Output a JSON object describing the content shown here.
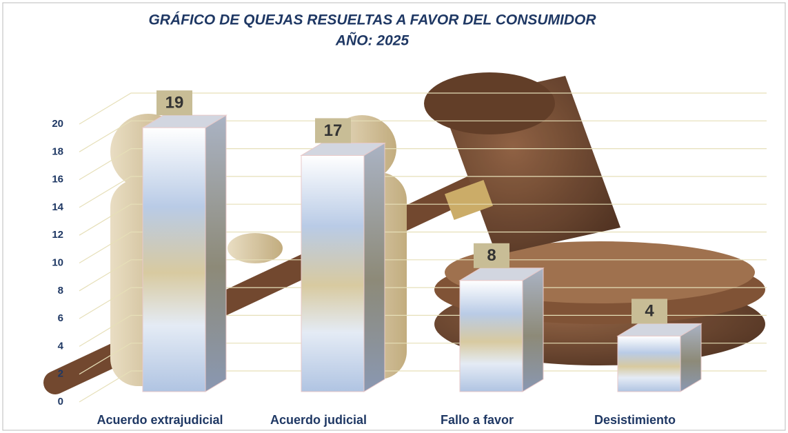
{
  "chart_data": {
    "type": "bar3d",
    "title": "GRÁFICO DE QUEJAS RESUELTAS A FAVOR DEL CONSUMIDOR",
    "subtitle": "AÑO: 2025",
    "categories": [
      "Acuerdo extrajudicial",
      "Acuerdo judicial",
      "Fallo a favor",
      "Desistimiento"
    ],
    "values": [
      19,
      17,
      8,
      4
    ],
    "ylim": [
      0,
      20
    ],
    "yticks": [
      0,
      2,
      4,
      6,
      8,
      10,
      12,
      14,
      16,
      18,
      20
    ],
    "grid": true
  }
}
